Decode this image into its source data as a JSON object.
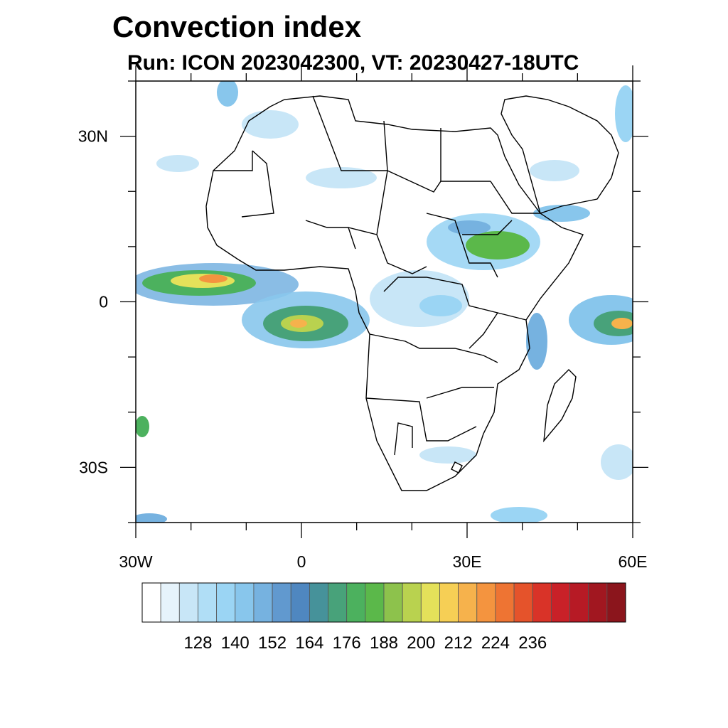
{
  "title": "Convection index",
  "subtitle": "Run: ICON 2023042300,  VT: 20230427-18UTC",
  "map": {
    "lon_range": [
      -30,
      60
    ],
    "lat_range": [
      -40,
      40
    ],
    "x_ticks": [
      {
        "lon": -30,
        "label": "30W"
      },
      {
        "lon": 0,
        "label": "0"
      },
      {
        "lon": 30,
        "label": "30E"
      },
      {
        "lon": 60,
        "label": "60E"
      }
    ],
    "y_ticks": [
      {
        "lat": 30,
        "label": "30N"
      },
      {
        "lat": 0,
        "label": "0"
      },
      {
        "lat": -30,
        "label": "30S"
      }
    ],
    "minor_lon_step": 10,
    "minor_lat_step": 10
  },
  "colorbar": {
    "colors": [
      "#ffffff",
      "#e6f3fb",
      "#c8e6f7",
      "#b0def6",
      "#9bd5f4",
      "#88c6ec",
      "#76b2e0",
      "#6199cf",
      "#4f87c0",
      "#46929a",
      "#48a27a",
      "#4cb15e",
      "#5bb84a",
      "#8dc24c",
      "#b9d24f",
      "#e4e15a",
      "#f6cf55",
      "#f6b24c",
      "#f4943f",
      "#ee7433",
      "#e5532b",
      "#d93328",
      "#c92128",
      "#b71a25",
      "#a11720",
      "#8b151c"
    ],
    "labels": [
      "128",
      "140",
      "152",
      "164",
      "176",
      "188",
      "200",
      "212",
      "224",
      "236"
    ]
  }
}
